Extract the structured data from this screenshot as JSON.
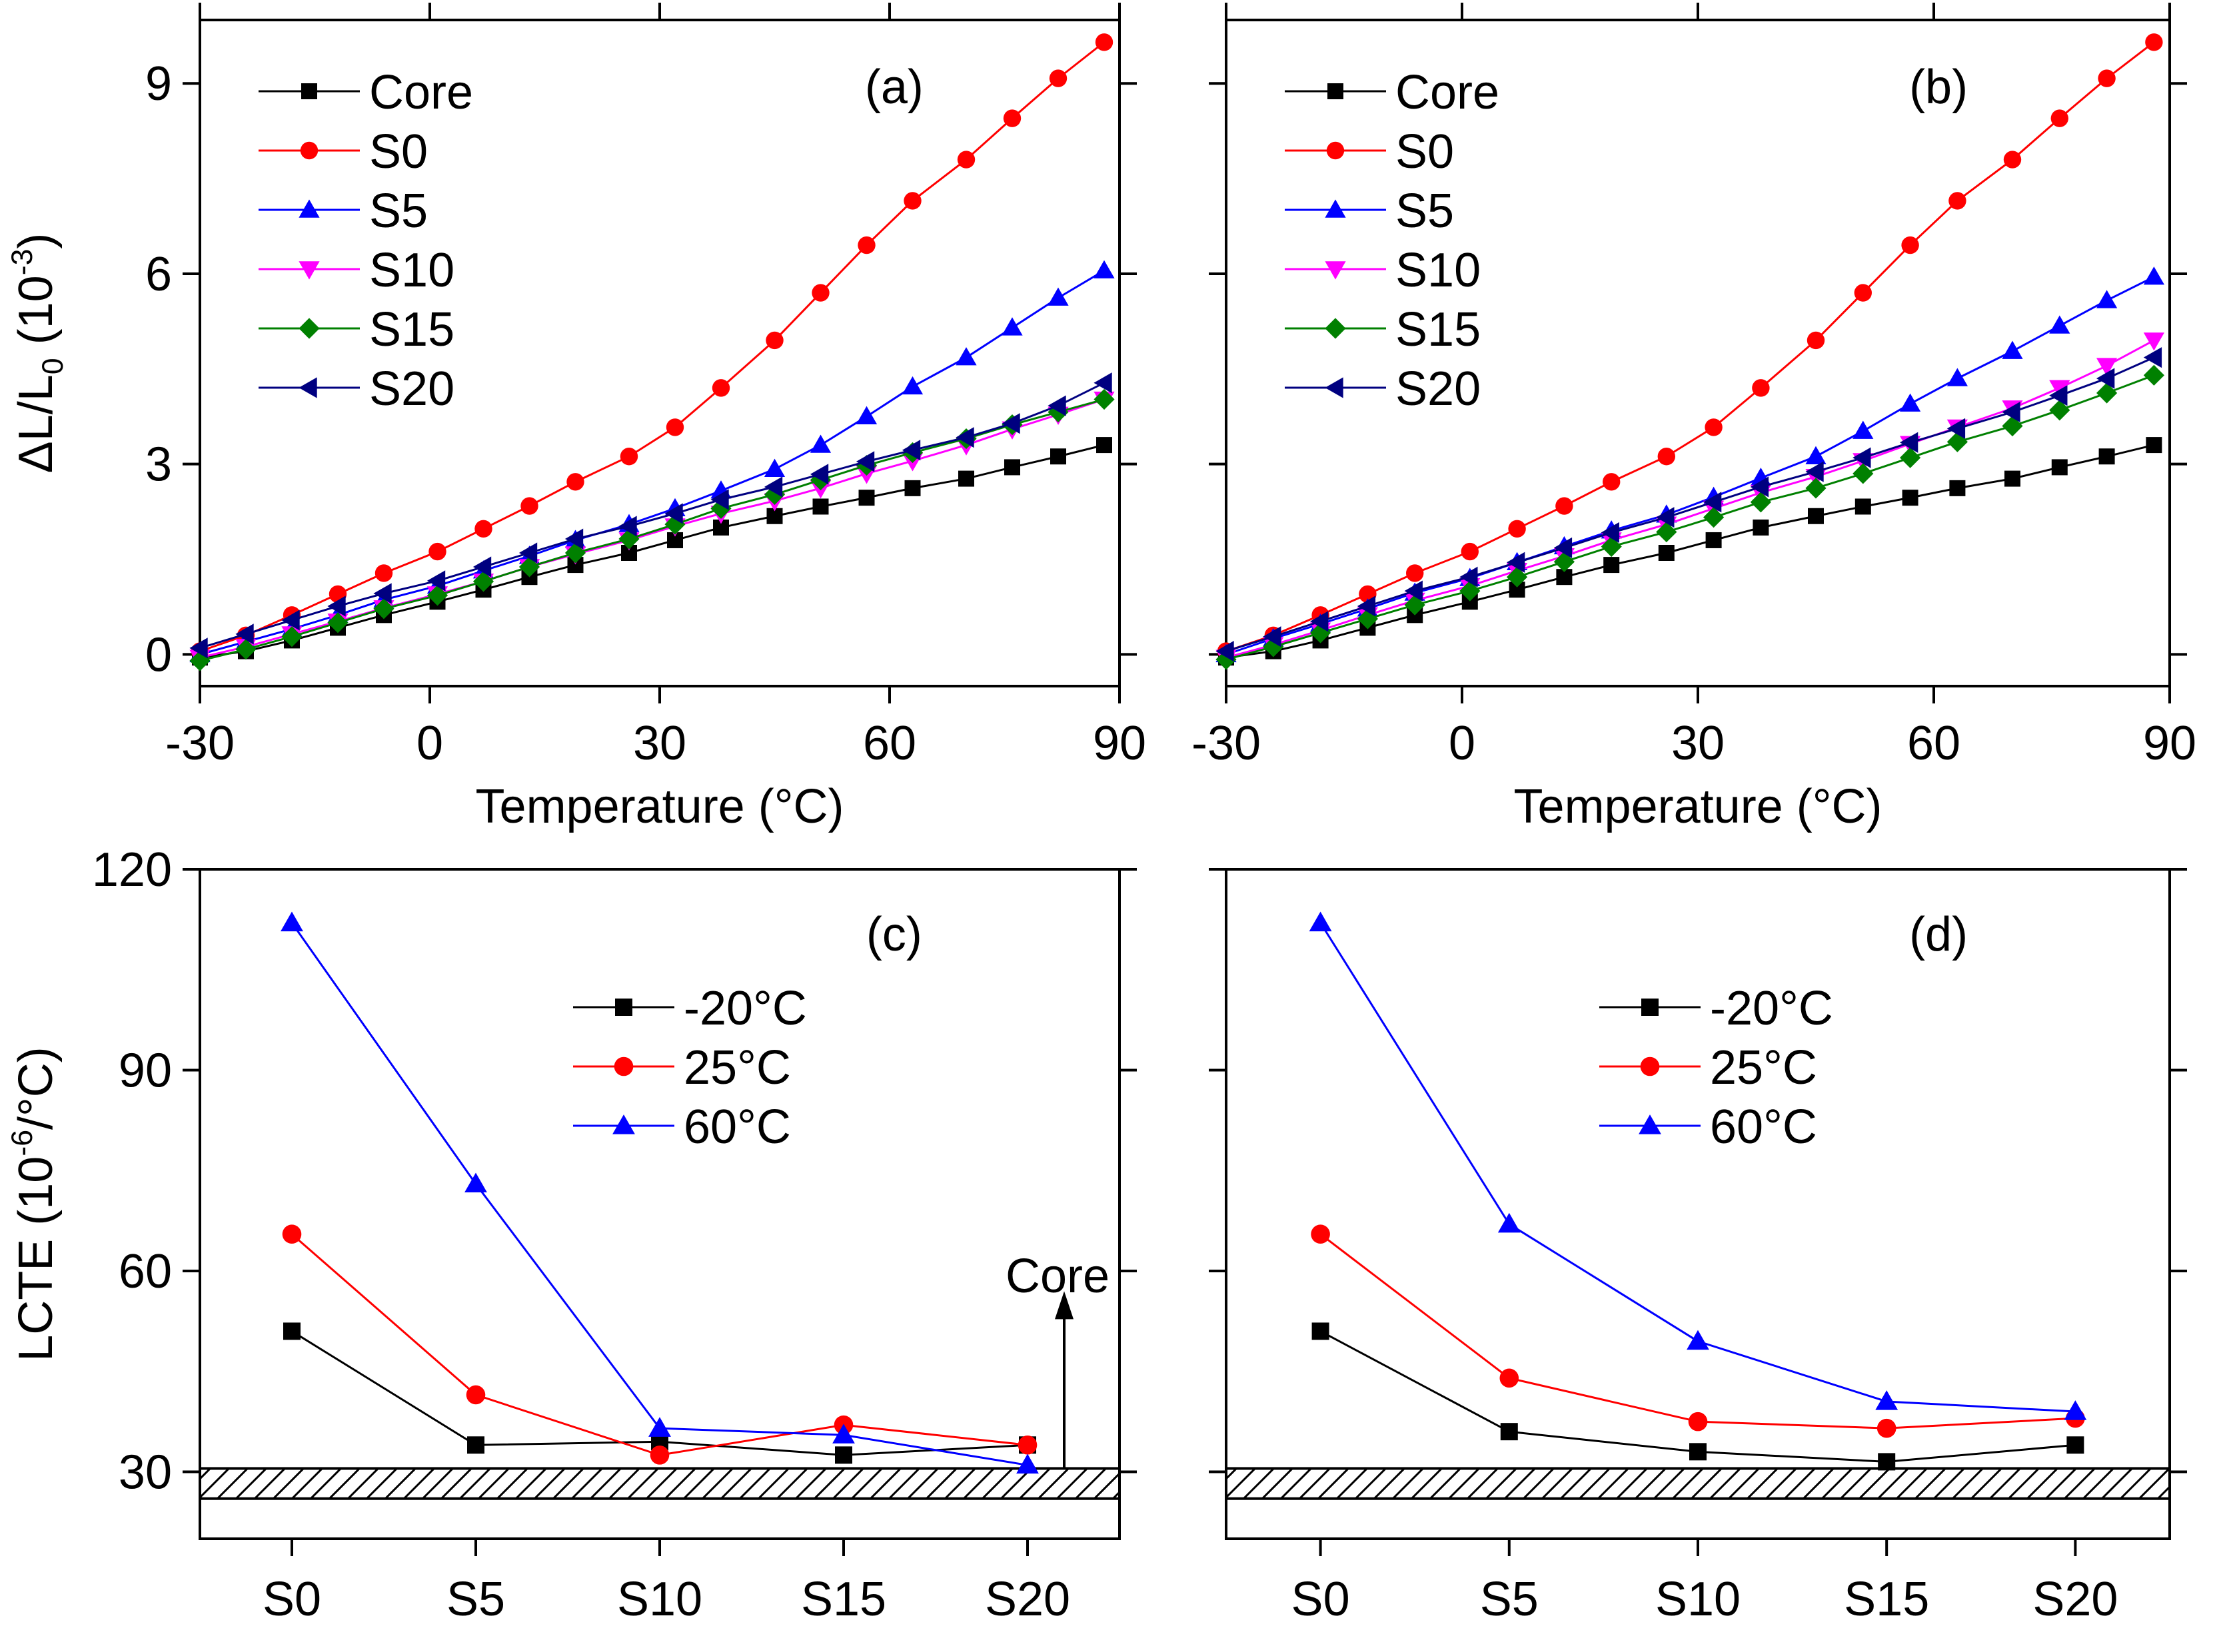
{
  "chart_data": [
    {
      "id": "a",
      "type": "line",
      "panel_label": "(a)",
      "xlabel": "Temperature (°C)",
      "ylabel": {
        "main": "ΔL/L",
        "sub": "0",
        "unit_open": " (10",
        "unit_exp": "-3",
        "unit_close": ")"
      },
      "xlim": [
        -30,
        90
      ],
      "ylim": [
        -0.5,
        10
      ],
      "xticks": [
        -30,
        0,
        30,
        60,
        90
      ],
      "yticks": [
        0,
        3,
        6,
        9
      ],
      "legend_position": "top-left",
      "x": [
        -30,
        -24,
        -18,
        -12,
        -6,
        1,
        7,
        13,
        19,
        26,
        32,
        38,
        45,
        51,
        57,
        63,
        70,
        76,
        82,
        88
      ],
      "series": [
        {
          "name": "Core",
          "color": "#000000",
          "marker": "square",
          "values": [
            -0.05,
            0.05,
            0.22,
            0.42,
            0.62,
            0.83,
            1.02,
            1.22,
            1.41,
            1.6,
            1.8,
            2.0,
            2.18,
            2.33,
            2.47,
            2.62,
            2.77,
            2.95,
            3.12,
            3.3
          ]
        },
        {
          "name": "S0",
          "color": "#ff0000",
          "marker": "circle",
          "values": [
            0.05,
            0.3,
            0.62,
            0.95,
            1.28,
            1.62,
            1.98,
            2.34,
            2.72,
            3.12,
            3.58,
            4.2,
            4.95,
            5.7,
            6.45,
            7.15,
            7.8,
            8.45,
            9.08,
            9.65
          ]
        },
        {
          "name": "S5",
          "color": "#0000ff",
          "marker": "triangle-up",
          "values": [
            0.0,
            0.2,
            0.4,
            0.62,
            0.86,
            1.08,
            1.32,
            1.55,
            1.8,
            2.05,
            2.3,
            2.58,
            2.92,
            3.3,
            3.75,
            4.22,
            4.68,
            5.15,
            5.62,
            6.05
          ]
        },
        {
          "name": "S10",
          "color": "#ff00ff",
          "marker": "triangle-down",
          "values": [
            -0.05,
            0.12,
            0.32,
            0.52,
            0.73,
            0.95,
            1.15,
            1.38,
            1.58,
            1.8,
            2.02,
            2.22,
            2.42,
            2.62,
            2.85,
            3.05,
            3.3,
            3.55,
            3.78,
            4.02
          ]
        },
        {
          "name": "S15",
          "color": "#008000",
          "marker": "diamond",
          "values": [
            -0.1,
            0.08,
            0.28,
            0.5,
            0.72,
            0.93,
            1.15,
            1.38,
            1.6,
            1.82,
            2.05,
            2.3,
            2.52,
            2.75,
            2.98,
            3.18,
            3.4,
            3.62,
            3.82,
            4.02
          ]
        },
        {
          "name": "S20",
          "color": "#000080",
          "marker": "triangle-left",
          "values": [
            0.1,
            0.32,
            0.54,
            0.76,
            0.96,
            1.16,
            1.38,
            1.6,
            1.82,
            2.02,
            2.22,
            2.44,
            2.64,
            2.84,
            3.04,
            3.22,
            3.42,
            3.64,
            3.92,
            4.28
          ]
        }
      ]
    },
    {
      "id": "b",
      "type": "line",
      "panel_label": "(b)",
      "xlabel": "Temperature (°C)",
      "xlim": [
        -30,
        90
      ],
      "ylim": [
        -0.5,
        10
      ],
      "xticks": [
        -30,
        0,
        30,
        60,
        90
      ],
      "yticks": [
        0,
        3,
        6,
        9
      ],
      "legend_position": "top-left",
      "x": [
        -30,
        -24,
        -18,
        -12,
        -6,
        1,
        7,
        13,
        19,
        26,
        32,
        38,
        45,
        51,
        57,
        63,
        70,
        76,
        82,
        88
      ],
      "series": [
        {
          "name": "Core",
          "color": "#000000",
          "marker": "square",
          "values": [
            -0.05,
            0.05,
            0.22,
            0.42,
            0.62,
            0.83,
            1.02,
            1.22,
            1.41,
            1.6,
            1.8,
            2.0,
            2.18,
            2.33,
            2.47,
            2.62,
            2.77,
            2.95,
            3.12,
            3.3
          ]
        },
        {
          "name": "S0",
          "color": "#ff0000",
          "marker": "circle",
          "values": [
            0.05,
            0.3,
            0.62,
            0.95,
            1.28,
            1.62,
            1.98,
            2.34,
            2.72,
            3.12,
            3.58,
            4.2,
            4.95,
            5.7,
            6.45,
            7.15,
            7.8,
            8.45,
            9.08,
            9.65
          ]
        },
        {
          "name": "S5",
          "color": "#0000ff",
          "marker": "triangle-up",
          "values": [
            0.0,
            0.25,
            0.48,
            0.72,
            0.97,
            1.2,
            1.45,
            1.7,
            1.95,
            2.2,
            2.48,
            2.78,
            3.12,
            3.52,
            3.95,
            4.35,
            4.78,
            5.18,
            5.58,
            5.95
          ]
        },
        {
          "name": "S10",
          "color": "#ff00ff",
          "marker": "triangle-down",
          "values": [
            -0.05,
            0.15,
            0.38,
            0.62,
            0.85,
            1.08,
            1.32,
            1.55,
            1.8,
            2.05,
            2.3,
            2.55,
            2.8,
            3.05,
            3.32,
            3.58,
            3.88,
            4.2,
            4.55,
            4.95
          ]
        },
        {
          "name": "S15",
          "color": "#008000",
          "marker": "diamond",
          "values": [
            -0.08,
            0.12,
            0.34,
            0.56,
            0.78,
            1.0,
            1.22,
            1.46,
            1.7,
            1.93,
            2.16,
            2.4,
            2.62,
            2.85,
            3.1,
            3.35,
            3.6,
            3.85,
            4.12,
            4.4
          ]
        },
        {
          "name": "S20",
          "color": "#000080",
          "marker": "triangle-left",
          "values": [
            0.05,
            0.28,
            0.52,
            0.76,
            1.0,
            1.22,
            1.45,
            1.68,
            1.92,
            2.16,
            2.4,
            2.64,
            2.88,
            3.1,
            3.34,
            3.56,
            3.82,
            4.08,
            4.35,
            4.68
          ]
        }
      ]
    },
    {
      "id": "c",
      "type": "line",
      "panel_label": "(c)",
      "ylabel": {
        "main": "LCTE",
        "unit_open": " (10",
        "unit_exp": "-6",
        "unit_close": "/°C)"
      },
      "categories": [
        "S0",
        "S5",
        "S10",
        "S15",
        "S20"
      ],
      "ylim": [
        20,
        120
      ],
      "yticks": [
        30,
        60,
        90,
        120
      ],
      "legend_position": "upper-middle",
      "core_band": [
        26,
        30.5
      ],
      "annotation": "Core",
      "series": [
        {
          "name": "-20°C",
          "color": "#000000",
          "marker": "square",
          "values": [
            51,
            34,
            34.5,
            32.5,
            34
          ]
        },
        {
          "name": "25°C",
          "color": "#ff0000",
          "marker": "circle",
          "values": [
            65.5,
            41.5,
            32.5,
            37,
            34
          ]
        },
        {
          "name": "60°C",
          "color": "#0000ff",
          "marker": "triangle-up",
          "values": [
            112,
            73,
            36.5,
            35.5,
            31
          ]
        }
      ]
    },
    {
      "id": "d",
      "type": "line",
      "panel_label": "(d)",
      "categories": [
        "S0",
        "S5",
        "S10",
        "S15",
        "S20"
      ],
      "ylim": [
        20,
        120
      ],
      "yticks": [
        30,
        60,
        90,
        120
      ],
      "legend_position": "upper-middle",
      "core_band": [
        26,
        30.5
      ],
      "series": [
        {
          "name": "-20°C",
          "color": "#000000",
          "marker": "square",
          "values": [
            51,
            36,
            33,
            31.5,
            34
          ]
        },
        {
          "name": "25°C",
          "color": "#ff0000",
          "marker": "circle",
          "values": [
            65.5,
            44,
            37.5,
            36.5,
            38
          ]
        },
        {
          "name": "60°C",
          "color": "#0000ff",
          "marker": "triangle-up",
          "values": [
            112,
            67,
            49.5,
            40.5,
            39
          ]
        }
      ]
    }
  ]
}
